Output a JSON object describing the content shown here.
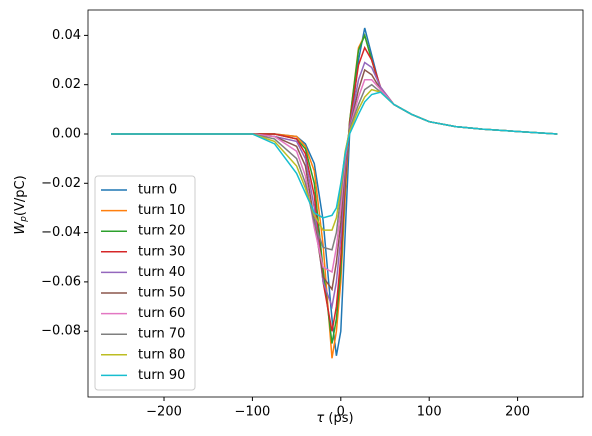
{
  "chart_data": {
    "type": "line",
    "xlabel": {
      "main": "τ",
      "unit": "(ps)"
    },
    "ylabel": {
      "main": "W",
      "sub": "p",
      "unit": "(V/pC)"
    },
    "x": [
      -260,
      -150,
      -100,
      -75,
      -50,
      -40,
      -30,
      -20,
      -10,
      -5,
      0,
      5,
      10,
      20,
      27,
      35,
      45,
      60,
      80,
      100,
      130,
      160,
      200,
      245
    ],
    "series": [
      {
        "name": "turn 0",
        "color": "#1f77b4",
        "values": [
          0,
          0,
          0,
          0,
          -0.001,
          -0.004,
          -0.012,
          -0.035,
          -0.075,
          -0.09,
          -0.08,
          -0.04,
          0.0,
          0.03,
          0.043,
          0.032,
          0.018,
          0.012,
          0.008,
          0.005,
          0.003,
          0.002,
          0.001,
          0.0
        ]
      },
      {
        "name": "turn 10",
        "color": "#ff7f0e",
        "values": [
          0,
          0,
          0,
          0,
          -0.001,
          -0.005,
          -0.015,
          -0.045,
          -0.091,
          -0.08,
          -0.06,
          -0.025,
          0.005,
          0.035,
          0.04,
          0.03,
          0.018,
          0.012,
          0.008,
          0.005,
          0.003,
          null,
          null,
          null
        ]
      },
      {
        "name": "turn 20",
        "color": "#2ca02c",
        "values": [
          0,
          0,
          0,
          0,
          -0.002,
          -0.006,
          -0.02,
          -0.055,
          -0.085,
          -0.075,
          -0.055,
          -0.02,
          0.005,
          0.034,
          0.04,
          0.03,
          0.018,
          0.012,
          0.008,
          0.005,
          0.003,
          0.002,
          0.001,
          0.0
        ]
      },
      {
        "name": "turn 30",
        "color": "#d62728",
        "values": [
          0,
          0,
          0,
          0,
          -0.002,
          -0.008,
          -0.025,
          -0.06,
          -0.08,
          -0.07,
          -0.05,
          -0.018,
          0.004,
          0.028,
          0.035,
          0.03,
          0.019,
          0.012,
          0.008,
          0.005,
          0.003,
          0.002,
          null,
          null
        ]
      },
      {
        "name": "turn 40",
        "color": "#9467bd",
        "values": [
          0,
          0,
          0,
          -0.001,
          -0.003,
          -0.01,
          -0.03,
          -0.06,
          -0.07,
          -0.06,
          -0.042,
          -0.015,
          0.003,
          0.022,
          0.029,
          0.027,
          0.019,
          0.012,
          0.008,
          0.005,
          0.003,
          0.002,
          0.001,
          0.0
        ]
      },
      {
        "name": "turn 50",
        "color": "#8c564b",
        "values": [
          0,
          0,
          0,
          -0.001,
          -0.005,
          -0.013,
          -0.035,
          -0.058,
          -0.063,
          -0.052,
          -0.036,
          -0.012,
          0.002,
          0.018,
          0.026,
          0.024,
          0.018,
          0.012,
          0.008,
          0.005,
          0.003,
          0.002,
          0.001,
          0.0
        ]
      },
      {
        "name": "turn 60",
        "color": "#e377c2",
        "values": [
          0,
          0,
          0,
          -0.001,
          -0.007,
          -0.017,
          -0.038,
          -0.054,
          -0.056,
          -0.046,
          -0.03,
          -0.01,
          0.002,
          0.015,
          0.022,
          0.022,
          0.018,
          0.012,
          0.008,
          0.005,
          0.003,
          0.002,
          0.001,
          0.0
        ]
      },
      {
        "name": "turn 70",
        "color": "#7f7f7f",
        "values": [
          0,
          0,
          0,
          -0.002,
          -0.01,
          -0.02,
          -0.036,
          -0.046,
          -0.047,
          -0.04,
          -0.025,
          -0.008,
          0.002,
          0.012,
          0.018,
          0.02,
          0.017,
          0.012,
          0.008,
          0.005,
          0.003,
          0.002,
          0.001,
          0.0
        ]
      },
      {
        "name": "turn 80",
        "color": "#bcbd22",
        "values": [
          0,
          0,
          0,
          -0.003,
          -0.013,
          -0.022,
          -0.033,
          -0.039,
          -0.039,
          -0.034,
          -0.022,
          -0.007,
          0.001,
          0.01,
          0.015,
          0.018,
          0.017,
          0.012,
          0.008,
          0.005,
          0.003,
          0.002,
          0.001,
          0.0
        ]
      },
      {
        "name": "turn 90",
        "color": "#17becf",
        "values": [
          0,
          0,
          0,
          -0.004,
          -0.016,
          -0.024,
          -0.032,
          -0.034,
          -0.033,
          -0.03,
          -0.02,
          -0.008,
          0.0,
          0.008,
          0.013,
          0.016,
          0.017,
          0.012,
          0.008,
          0.005,
          0.003,
          0.002,
          0.001,
          0.0
        ]
      }
    ],
    "xlim": [
      -286,
      274
    ],
    "ylim": [
      -0.1067,
      0.0503
    ],
    "xticks": [
      {
        "value": -200,
        "label": "−200"
      },
      {
        "value": -100,
        "label": "−100"
      },
      0,
      100,
      200
    ],
    "yticks": [
      {
        "value": -0.08,
        "label": "−0.08"
      },
      {
        "value": -0.06,
        "label": "−0.06"
      },
      {
        "value": -0.04,
        "label": "−0.04"
      },
      {
        "value": -0.02,
        "label": "−0.02"
      },
      {
        "value": 0,
        "label": "0.00"
      },
      0.02,
      0.04
    ],
    "legend": "lower left",
    "grid": false
  }
}
